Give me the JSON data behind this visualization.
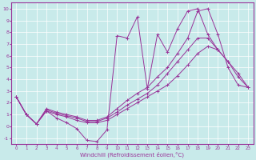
{
  "bg_color": "#c8eaea",
  "line_color": "#993399",
  "grid_color": "#ffffff",
  "xlabel": "Windchill (Refroidissement éolien,°C)",
  "xlim": [
    -0.5,
    23.5
  ],
  "ylim": [
    -1.5,
    10.5
  ],
  "yticks": [
    -1,
    0,
    1,
    2,
    3,
    4,
    5,
    6,
    7,
    8,
    9,
    10
  ],
  "xticks": [
    0,
    1,
    2,
    3,
    4,
    5,
    6,
    7,
    8,
    9,
    10,
    11,
    12,
    13,
    14,
    15,
    16,
    17,
    18,
    19,
    20,
    21,
    22,
    23
  ],
  "line1_x": [
    0,
    1,
    2,
    3,
    4,
    5,
    6,
    7,
    8,
    9,
    10,
    11,
    12,
    13,
    14,
    15,
    16,
    17,
    18,
    19,
    20
  ],
  "line1_y": [
    2.5,
    1.0,
    0.2,
    1.3,
    0.7,
    0.3,
    -0.2,
    -1.2,
    -1.3,
    -0.3,
    7.7,
    7.5,
    9.3,
    3.2,
    7.8,
    6.3,
    8.3,
    9.8,
    10.0,
    7.8,
    6.5
  ],
  "line2_x": [
    0,
    1,
    2,
    3,
    4,
    5,
    6,
    7,
    8,
    9,
    10,
    11,
    12,
    13,
    14,
    15,
    16,
    17,
    18,
    19,
    20,
    21,
    22,
    23
  ],
  "line2_y": [
    2.5,
    1.0,
    0.2,
    1.5,
    1.2,
    1.0,
    0.8,
    0.5,
    0.5,
    0.8,
    1.5,
    2.2,
    2.8,
    3.3,
    4.2,
    5.0,
    6.2,
    7.5,
    9.8,
    10.0,
    7.8,
    5.0,
    3.5,
    3.3
  ],
  "line3_x": [
    0,
    1,
    2,
    3,
    4,
    5,
    6,
    7,
    8,
    9,
    10,
    11,
    12,
    13,
    14,
    15,
    16,
    17,
    18,
    19,
    20,
    21,
    22,
    23
  ],
  "line3_y": [
    2.5,
    1.0,
    0.2,
    1.4,
    1.1,
    0.9,
    0.7,
    0.4,
    0.4,
    0.7,
    1.2,
    1.8,
    2.3,
    2.8,
    3.5,
    4.5,
    5.5,
    6.5,
    7.5,
    7.5,
    6.5,
    5.5,
    4.5,
    3.3
  ],
  "line4_x": [
    0,
    1,
    2,
    3,
    4,
    5,
    6,
    7,
    8,
    9,
    10,
    11,
    12,
    13,
    14,
    15,
    16,
    17,
    18,
    19,
    20,
    21,
    22,
    23
  ],
  "line4_y": [
    2.5,
    1.0,
    0.2,
    1.3,
    1.0,
    0.8,
    0.5,
    0.3,
    0.3,
    0.5,
    1.0,
    1.5,
    2.0,
    2.5,
    3.0,
    3.5,
    4.3,
    5.2,
    6.2,
    6.8,
    6.5,
    5.5,
    4.2,
    3.3
  ]
}
